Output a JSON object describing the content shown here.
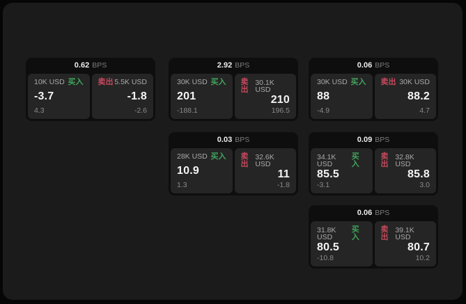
{
  "labels": {
    "bps_unit": "BPS",
    "buy": "买入",
    "sell": "卖出"
  },
  "colors": {
    "buy_accent": "#41a35b",
    "sell_accent": "#c4495c",
    "surface": "#1b1b1b",
    "card_shell": "#0e0e0e",
    "tile": "#252525"
  },
  "cards": [
    {
      "bps": "0.62",
      "buy": {
        "amount": "10K USD",
        "price": "-3.7",
        "change": "4.3"
      },
      "sell": {
        "amount": "5.5K USD",
        "price": "-1.8",
        "change": "-2.6"
      }
    },
    {
      "bps": "2.92",
      "buy": {
        "amount": "30K USD",
        "price": "201",
        "change": "-188.1"
      },
      "sell": {
        "amount": "30.1K USD",
        "price": "210",
        "change": "196.5"
      }
    },
    {
      "bps": "0.06",
      "buy": {
        "amount": "30K USD",
        "price": "88",
        "change": "-4.9"
      },
      "sell": {
        "amount": "30K USD",
        "price": "88.2",
        "change": "4.7"
      }
    },
    {
      "bps": "0.03",
      "buy": {
        "amount": "28K USD",
        "price": "10.9",
        "change": "1.3"
      },
      "sell": {
        "amount": "32.6K USD",
        "price": "11",
        "change": "-1.8"
      }
    },
    {
      "bps": "0.09",
      "buy": {
        "amount": "34.1K USD",
        "price": "85.5",
        "change": "-3.1"
      },
      "sell": {
        "amount": "32.8K USD",
        "price": "85.8",
        "change": "3.0"
      }
    },
    {
      "bps": "0.06",
      "buy": {
        "amount": "31.8K USD",
        "price": "80.5",
        "change": "-10.8"
      },
      "sell": {
        "amount": "39.1K USD",
        "price": "80.7",
        "change": "10.2"
      }
    }
  ]
}
